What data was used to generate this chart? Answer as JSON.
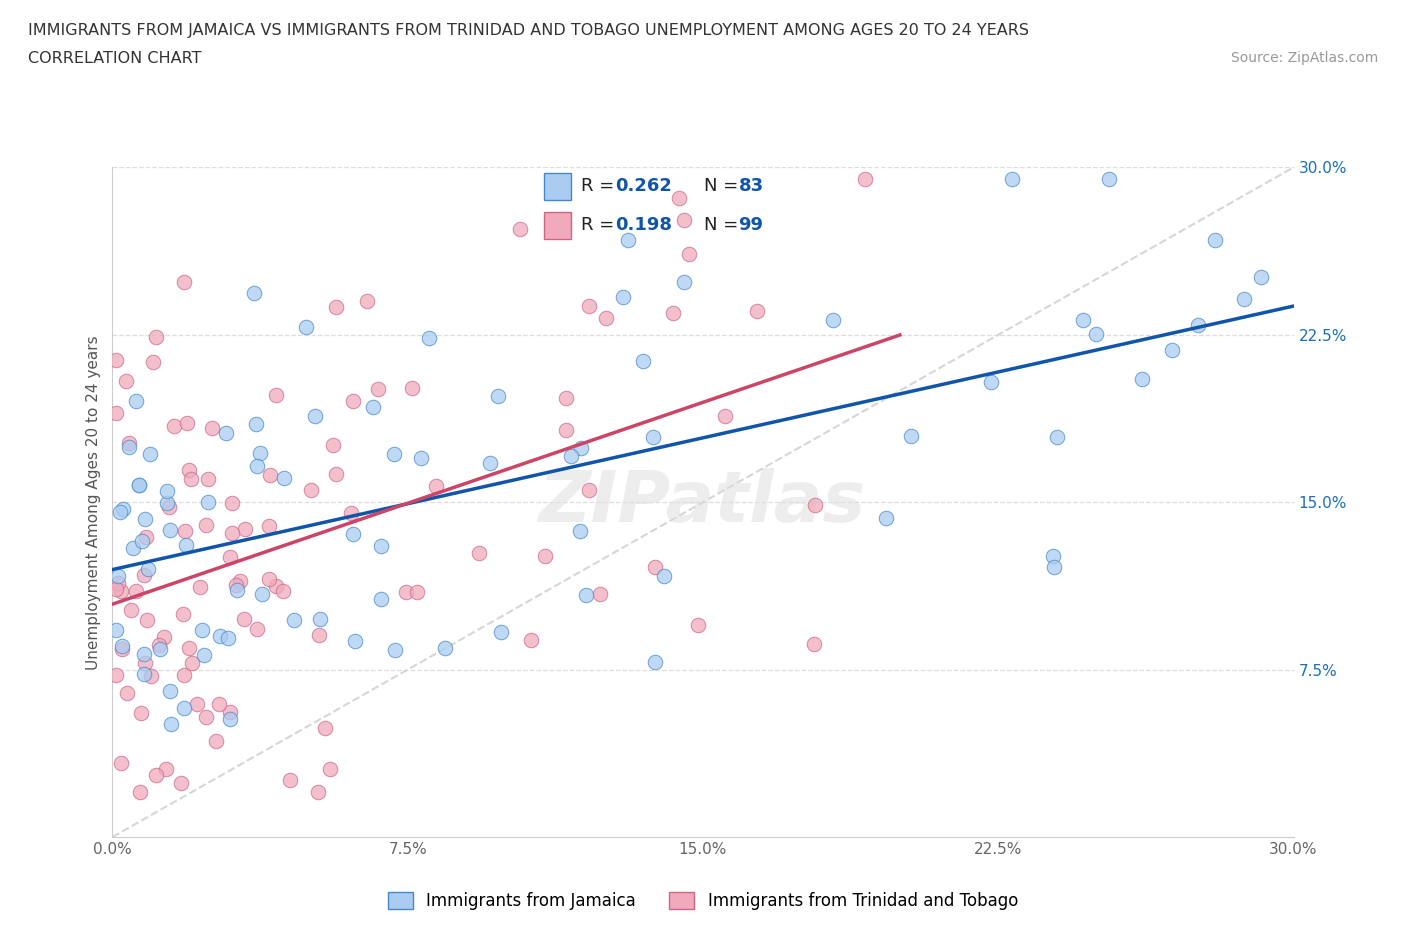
{
  "title_line1": "IMMIGRANTS FROM JAMAICA VS IMMIGRANTS FROM TRINIDAD AND TOBAGO UNEMPLOYMENT AMONG AGES 20 TO 24 YEARS",
  "title_line2": "CORRELATION CHART",
  "source_text": "Source: ZipAtlas.com",
  "ylabel": "Unemployment Among Ages 20 to 24 years",
  "xlim": [
    0.0,
    0.3
  ],
  "ylim": [
    0.0,
    0.3
  ],
  "xtick_labels": [
    "0.0%",
    "7.5%",
    "15.0%",
    "22.5%",
    "30.0%"
  ],
  "xtick_vals": [
    0.0,
    0.075,
    0.15,
    0.225,
    0.3
  ],
  "ytick_labels": [
    "7.5%",
    "15.0%",
    "22.5%",
    "30.0%"
  ],
  "ytick_vals_right": [
    0.075,
    0.15,
    0.225,
    0.3
  ],
  "color_jamaica": "#aaccf0",
  "color_trinidad": "#f0aabb",
  "edge_color_jamaica": "#4488cc",
  "edge_color_trinidad": "#cc6688",
  "regression_color_jamaica": "#1155aa",
  "regression_color_trinidad": "#cc4466",
  "regression_color_diagonal": "#cccccc",
  "r_jamaica": "0.262",
  "n_jamaica": "83",
  "r_trinidad": "0.198",
  "n_trinidad": "99",
  "legend_label_jamaica": "Immigrants from Jamaica",
  "legend_label_trinidad": "Immigrants from Trinidad and Tobago",
  "watermark": "ZIPatlas"
}
